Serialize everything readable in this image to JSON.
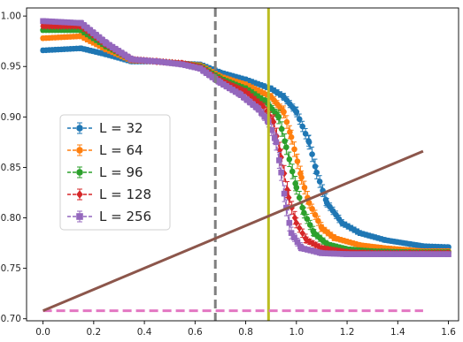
{
  "chart_data": {
    "type": "scatter",
    "title": "",
    "xlabel": "",
    "ylabel": "",
    "xlim": [
      -0.065,
      1.64
    ],
    "ylim": [
      0.698,
      1.008
    ],
    "grid": false,
    "legend_placement": "center-left",
    "x_ticks": [
      "0.0",
      "0.2",
      "0.4",
      "0.6",
      "0.8",
      "1.0",
      "1.2",
      "1.4",
      "1.6"
    ],
    "y_ticks": [
      "0.70",
      "0.75",
      "0.80",
      "0.85",
      "0.90",
      "0.95",
      "1.00"
    ],
    "series": [
      {
        "name": "L = 32",
        "color": "#1f77b4",
        "marker": "circle",
        "x": [
          0.0,
          0.15,
          0.25,
          0.35,
          0.45,
          0.55,
          0.62,
          0.7,
          0.8,
          0.9,
          0.95,
          1.0,
          1.05,
          1.08,
          1.12,
          1.18,
          1.25,
          1.35,
          1.45,
          1.5,
          1.6
        ],
        "y": [
          0.966,
          0.968,
          0.962,
          0.955,
          0.955,
          0.953,
          0.952,
          0.944,
          0.937,
          0.928,
          0.92,
          0.905,
          0.875,
          0.845,
          0.815,
          0.795,
          0.785,
          0.778,
          0.774,
          0.772,
          0.771
        ]
      },
      {
        "name": "L = 64",
        "color": "#ff7f0e",
        "marker": "circle",
        "x": [
          0.0,
          0.15,
          0.25,
          0.35,
          0.45,
          0.55,
          0.62,
          0.7,
          0.8,
          0.9,
          0.95,
          0.98,
          1.02,
          1.05,
          1.1,
          1.15,
          1.25,
          1.35,
          1.45,
          1.5,
          1.6
        ],
        "y": [
          0.978,
          0.98,
          0.967,
          0.956,
          0.955,
          0.953,
          0.951,
          0.94,
          0.932,
          0.92,
          0.905,
          0.88,
          0.84,
          0.815,
          0.79,
          0.78,
          0.773,
          0.77,
          0.768,
          0.767,
          0.767
        ]
      },
      {
        "name": "L = 96",
        "color": "#2ca02c",
        "marker": "circle",
        "x": [
          0.0,
          0.15,
          0.25,
          0.35,
          0.45,
          0.55,
          0.62,
          0.7,
          0.8,
          0.88,
          0.93,
          0.96,
          1.0,
          1.03,
          1.07,
          1.12,
          1.2,
          1.3,
          1.45,
          1.6
        ],
        "y": [
          0.986,
          0.986,
          0.97,
          0.957,
          0.955,
          0.953,
          0.95,
          0.938,
          0.928,
          0.915,
          0.9,
          0.87,
          0.83,
          0.805,
          0.785,
          0.774,
          0.769,
          0.767,
          0.766,
          0.766
        ]
      },
      {
        "name": "L = 128",
        "color": "#d62728",
        "marker": "diamond",
        "x": [
          0.0,
          0.15,
          0.25,
          0.35,
          0.45,
          0.55,
          0.62,
          0.7,
          0.8,
          0.87,
          0.91,
          0.94,
          0.97,
          1.0,
          1.04,
          1.1,
          1.2,
          1.3,
          1.45,
          1.6
        ],
        "y": [
          0.99,
          0.99,
          0.972,
          0.957,
          0.955,
          0.953,
          0.949,
          0.936,
          0.925,
          0.91,
          0.895,
          0.86,
          0.82,
          0.795,
          0.778,
          0.77,
          0.766,
          0.765,
          0.765,
          0.765
        ]
      },
      {
        "name": "L = 256",
        "color": "#9467bd",
        "marker": "square",
        "x": [
          0.0,
          0.15,
          0.25,
          0.35,
          0.45,
          0.55,
          0.62,
          0.7,
          0.78,
          0.85,
          0.89,
          0.92,
          0.94,
          0.96,
          0.98,
          1.02,
          1.1,
          1.2,
          1.35,
          1.5,
          1.6
        ],
        "y": [
          0.995,
          0.993,
          0.973,
          0.957,
          0.955,
          0.952,
          0.948,
          0.934,
          0.922,
          0.908,
          0.895,
          0.875,
          0.845,
          0.81,
          0.785,
          0.77,
          0.765,
          0.764,
          0.764,
          0.764,
          0.764
        ]
      }
    ],
    "reference_lines": [
      {
        "kind": "vertical",
        "x": 0.68,
        "color": "#7f7f7f",
        "style": "dashed"
      },
      {
        "kind": "vertical",
        "x": 0.89,
        "color": "#bcbd22",
        "style": "solid"
      },
      {
        "kind": "horizontal",
        "y": 0.708,
        "x_from": 0.0,
        "x_to": 1.5,
        "color": "#e377c2",
        "style": "dashed"
      },
      {
        "kind": "segment",
        "x1": 0.0,
        "y1": 0.708,
        "x2": 1.5,
        "y2": 0.866,
        "color": "#8c564b",
        "style": "solid"
      }
    ]
  }
}
